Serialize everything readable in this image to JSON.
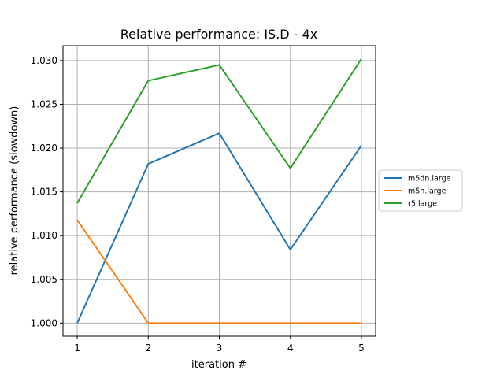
{
  "chart_data": {
    "type": "line",
    "title": "Relative performance: IS.D - 4x",
    "xlabel": "iteration #",
    "ylabel": "relative performance (slowdown)",
    "x": [
      1,
      2,
      3,
      4,
      5
    ],
    "xticks": [
      "1",
      "2",
      "3",
      "4",
      "5"
    ],
    "yticks": [
      "1.000",
      "1.005",
      "1.010",
      "1.015",
      "1.020",
      "1.025",
      "1.030"
    ],
    "xlim": [
      0.8,
      5.2
    ],
    "ylim": [
      0.9985,
      1.0317
    ],
    "grid": true,
    "legend_position": "right, outside plot",
    "series": [
      {
        "name": "m5dn.large",
        "color": "#1f77b4",
        "values": [
          1.0,
          1.0182,
          1.0217,
          1.0084,
          1.0203
        ]
      },
      {
        "name": "m5n.large",
        "color": "#ff7f0e",
        "values": [
          1.0118,
          1.0,
          1.0,
          1.0,
          1.0
        ]
      },
      {
        "name": "r5.large",
        "color": "#2ca02c",
        "values": [
          1.0137,
          1.0277,
          1.0295,
          1.0177,
          1.0302
        ]
      }
    ]
  }
}
